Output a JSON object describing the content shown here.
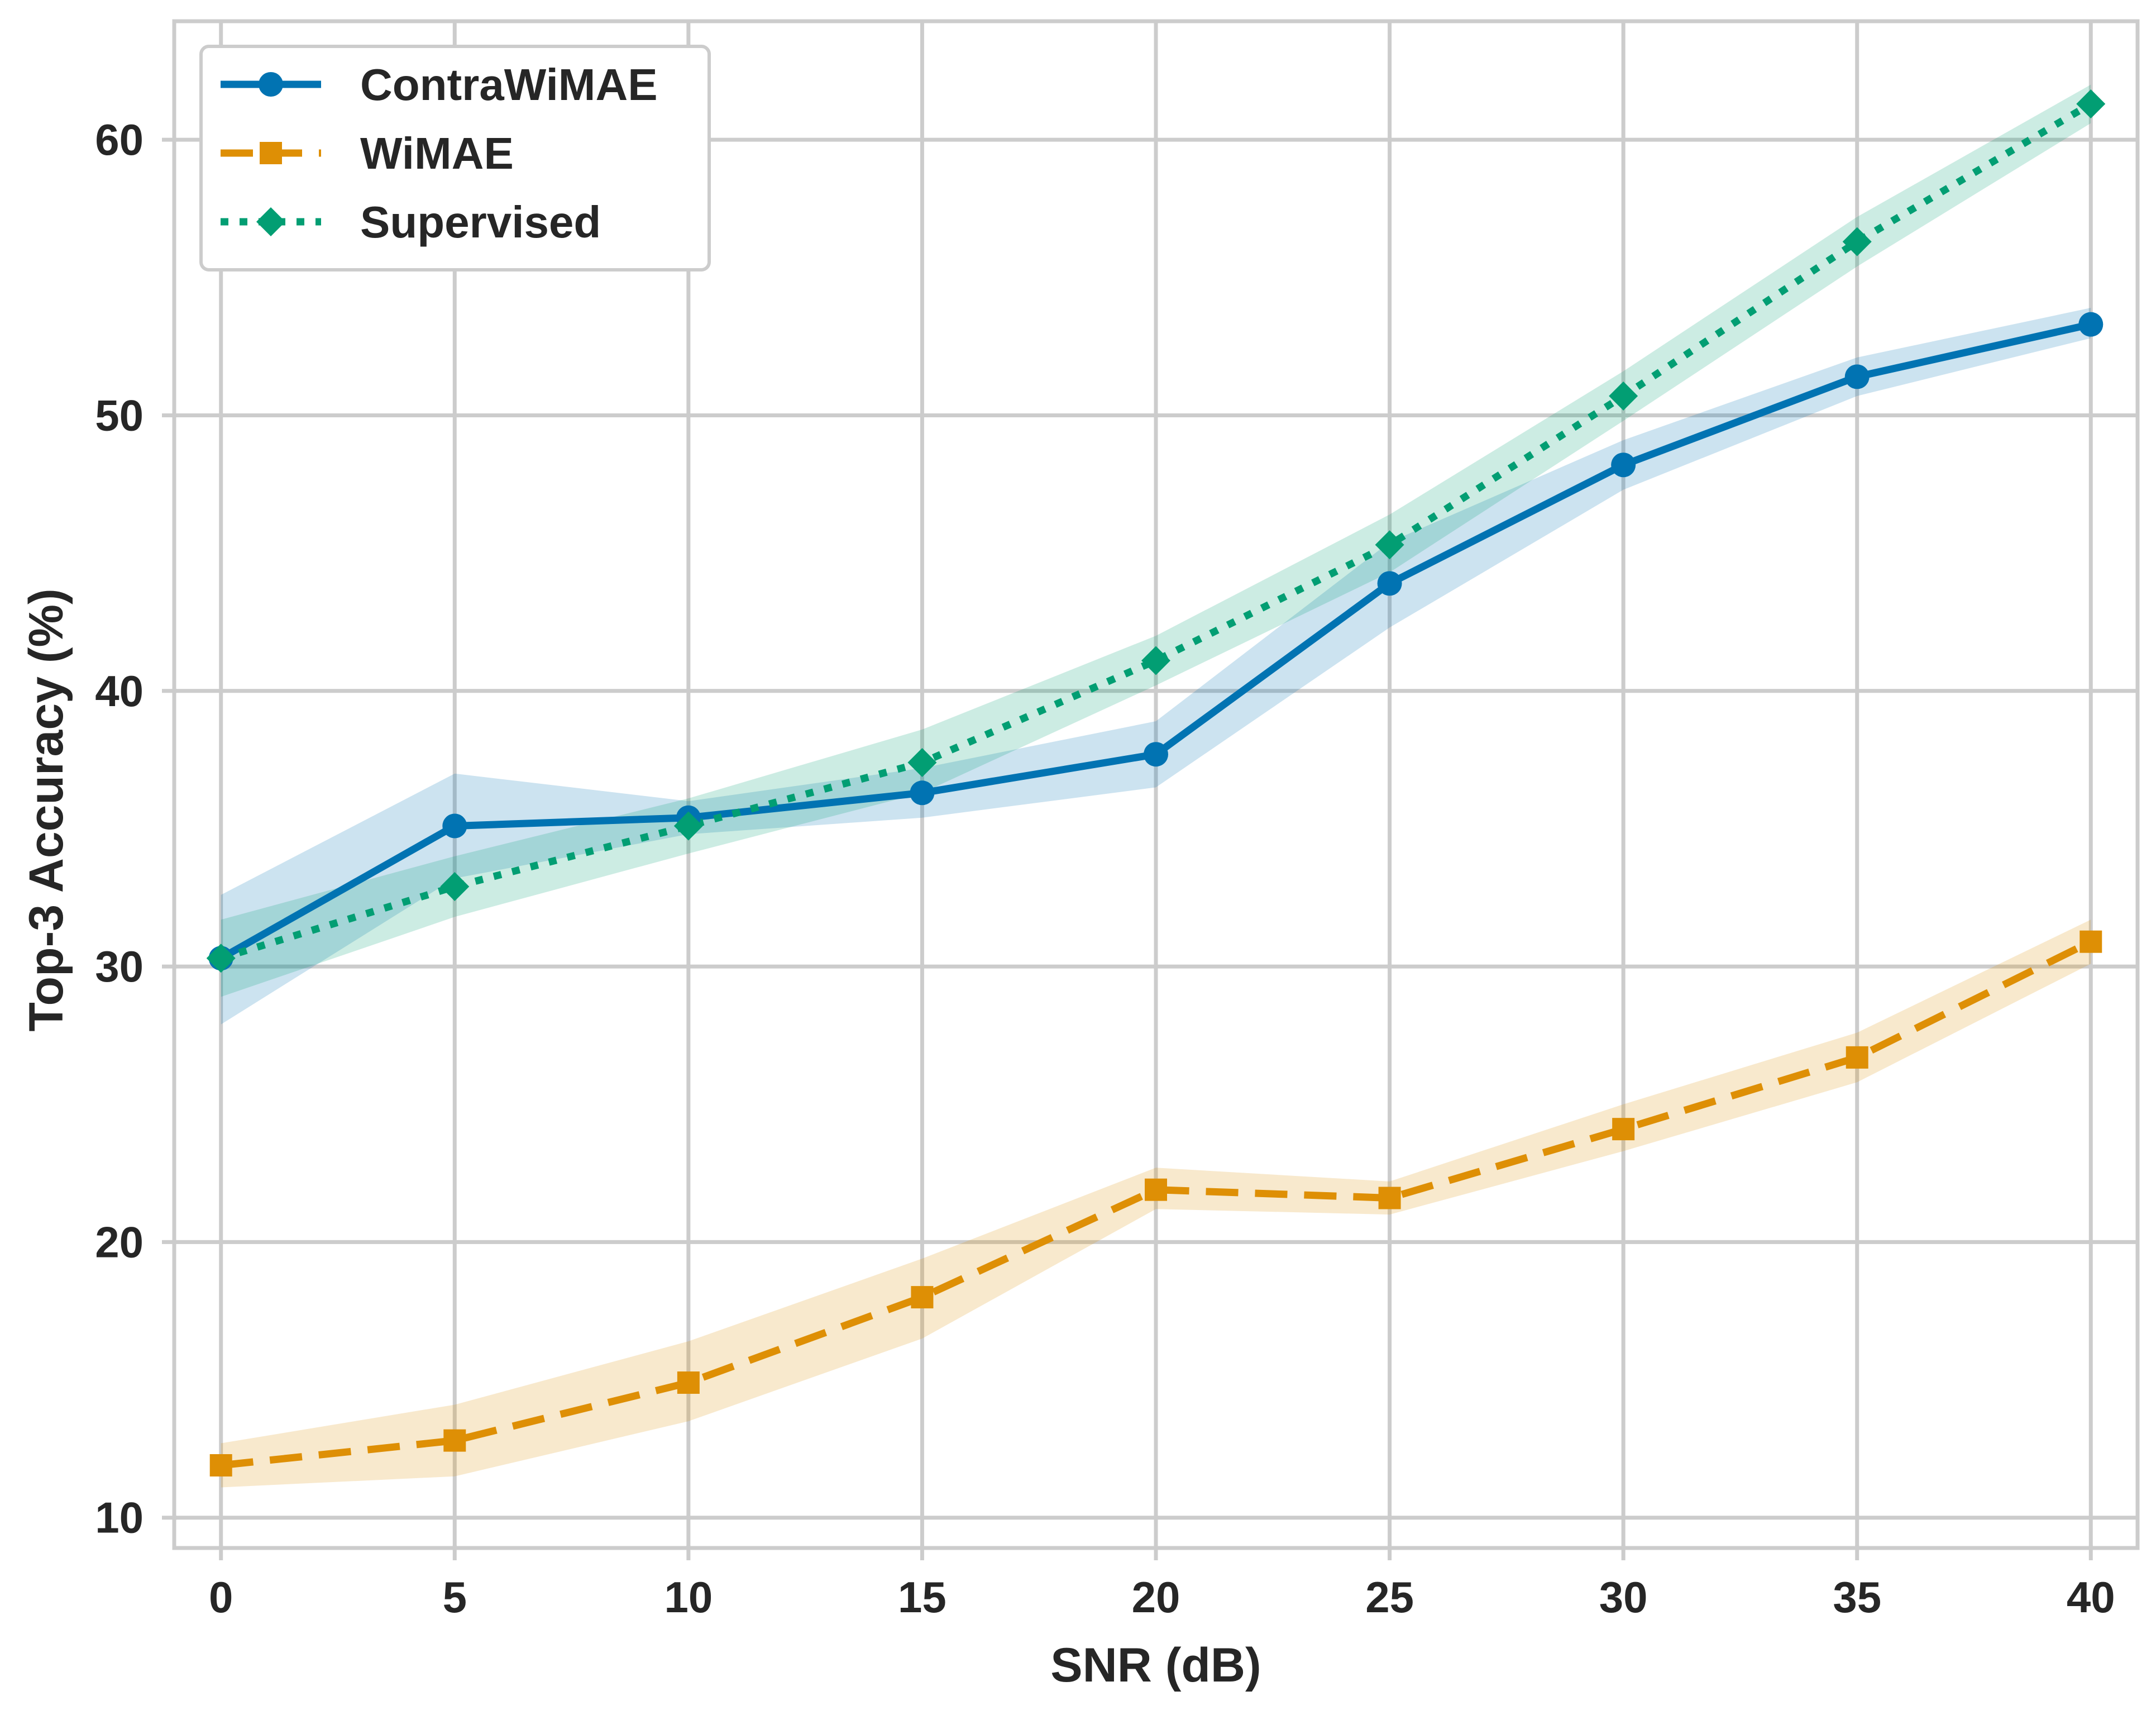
{
  "chart_data": {
    "type": "line",
    "title": "",
    "xlabel": "SNR (dB)",
    "ylabel": "Top-3 Accuracy (%)",
    "x": [
      0,
      5,
      10,
      15,
      20,
      25,
      30,
      35,
      40
    ],
    "xticks": [
      0,
      5,
      10,
      15,
      20,
      25,
      30,
      35,
      40
    ],
    "yticks": [
      10,
      20,
      30,
      40,
      50,
      60
    ],
    "xlim": [
      -1,
      41
    ],
    "ylim": [
      8.9,
      64.3
    ],
    "grid": true,
    "legend_position": "top-left",
    "series": [
      {
        "name": "ContraWiMAE",
        "color": "#0173b2",
        "marker": "circle",
        "linestyle": "solid",
        "values": [
          30.3,
          35.1,
          35.4,
          36.3,
          37.7,
          43.9,
          48.2,
          51.4,
          53.3
        ],
        "lower": [
          27.9,
          33.2,
          34.8,
          35.4,
          36.5,
          42.3,
          47.3,
          50.7,
          52.8
        ],
        "upper": [
          32.6,
          37.0,
          36.0,
          37.2,
          38.9,
          45.4,
          49.1,
          52.1,
          53.9
        ]
      },
      {
        "name": "WiMAE",
        "color": "#de8f05",
        "marker": "square",
        "linestyle": "dashed",
        "values": [
          11.9,
          12.8,
          14.9,
          18.0,
          21.9,
          21.6,
          24.1,
          26.7,
          30.9
        ],
        "lower": [
          11.1,
          11.5,
          13.5,
          16.5,
          21.2,
          21.0,
          23.3,
          25.8,
          30.1
        ],
        "upper": [
          12.7,
          14.1,
          16.4,
          19.4,
          22.7,
          22.2,
          25.0,
          27.6,
          31.7
        ]
      },
      {
        "name": "Supervised",
        "color": "#029e73",
        "marker": "diamond",
        "linestyle": "dotted",
        "values": [
          30.3,
          32.9,
          35.1,
          37.4,
          41.1,
          45.3,
          50.7,
          56.3,
          61.3
        ],
        "lower": [
          28.9,
          31.8,
          34.1,
          36.3,
          40.2,
          44.3,
          49.8,
          55.4,
          60.6
        ],
        "upper": [
          31.7,
          34.0,
          36.1,
          38.6,
          42.0,
          46.4,
          51.6,
          57.2,
          62.0
        ]
      }
    ]
  }
}
